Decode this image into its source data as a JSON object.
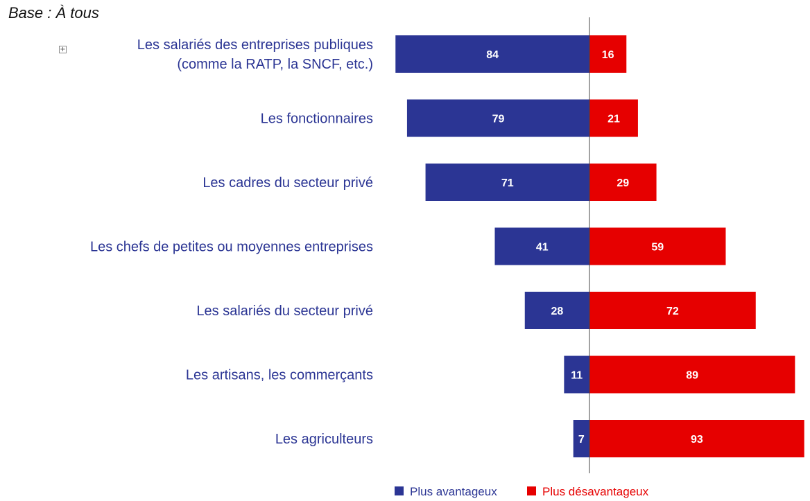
{
  "base_label": "Base : À tous",
  "colors": {
    "series_1": "#2B3594",
    "series_2": "#E60000",
    "label_text": "#2B3594"
  },
  "chart_data": {
    "type": "bar",
    "orientation": "horizontal-diverging",
    "categories": [
      [
        "Les salariés des entreprises publiques",
        "(comme la RATP, la SNCF, etc.)"
      ],
      [
        "Les fonctionnaires"
      ],
      [
        "Les cadres du secteur privé"
      ],
      [
        "Les chefs de petites ou moyennes entreprises"
      ],
      [
        "Les salariés du secteur privé"
      ],
      [
        "Les artisans, les commerçants"
      ],
      [
        "Les agriculteurs"
      ]
    ],
    "series": [
      {
        "name": "Plus avantageux",
        "values": [
          84,
          79,
          71,
          41,
          28,
          11,
          7
        ]
      },
      {
        "name": "Plus désavantageux",
        "values": [
          16,
          21,
          29,
          59,
          72,
          89,
          93
        ]
      }
    ],
    "legend_position": "bottom",
    "grid": false
  }
}
